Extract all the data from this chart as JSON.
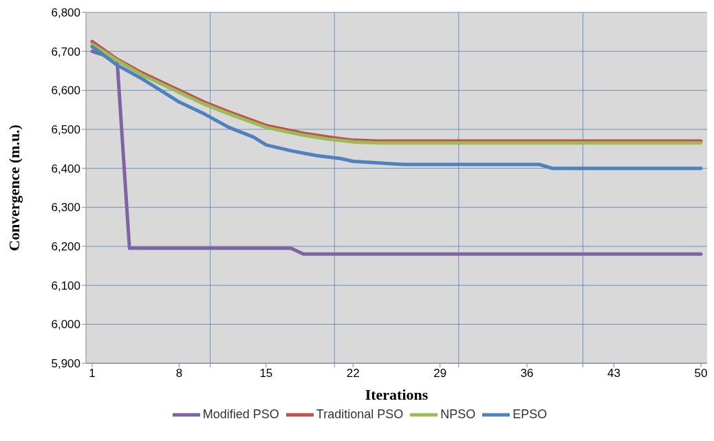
{
  "chart_data": {
    "type": "line",
    "xlabel": "Iterations",
    "ylabel": "Convergence (m.u.)",
    "xlim": [
      0.5,
      50.5
    ],
    "xticks": [
      1,
      8,
      {
        "value": 10.5,
        "label": null
      },
      15,
      {
        "value": 20.5,
        "label": null
      },
      22,
      29,
      {
        "value": 30.5,
        "label": null
      },
      36,
      {
        "value": 40.5,
        "label": null
      },
      43,
      50
    ],
    "ylim": [
      5900,
      6800
    ],
    "yticks": [
      {
        "value": 5900,
        "label": "5,900"
      },
      {
        "value": 6000,
        "label": "6,000"
      },
      {
        "value": 6100,
        "label": "6,100"
      },
      {
        "value": 6200,
        "label": "6,200"
      },
      {
        "value": 6300,
        "label": "6,300"
      },
      {
        "value": 6400,
        "label": "6,400"
      },
      {
        "value": 6500,
        "label": "6,500"
      },
      {
        "value": 6600,
        "label": "6,600"
      },
      {
        "value": 6700,
        "label": "6,700"
      },
      {
        "value": 6800,
        "label": "6,800"
      }
    ],
    "grid": true,
    "legend": "bottom",
    "marker": "none",
    "line_style": "solid",
    "series": [
      {
        "name": "Modified PSO",
        "color": "#8064a2",
        "x": [
          1,
          2,
          3,
          4,
          17,
          18,
          50
        ],
        "values": [
          6700,
          6690,
          6680,
          6195,
          6195,
          6180,
          6180
        ]
      },
      {
        "name": "Traditional PSO",
        "color": "#c0504d",
        "x": [
          1,
          3,
          5,
          8,
          10,
          12,
          15,
          18,
          20,
          22,
          24,
          50
        ],
        "values": [
          6725,
          6680,
          6645,
          6600,
          6570,
          6545,
          6510,
          6490,
          6480,
          6472,
          6470,
          6470
        ]
      },
      {
        "name": "NPSO",
        "color": "#9bbb59",
        "x": [
          1,
          3,
          5,
          8,
          10,
          12,
          15,
          18,
          20,
          22,
          24,
          50
        ],
        "values": [
          6718,
          6677,
          6640,
          6595,
          6565,
          6540,
          6505,
          6485,
          6475,
          6468,
          6465,
          6465
        ]
      },
      {
        "name": "EPSO",
        "color": "#4f81bd",
        "x": [
          1,
          3,
          5,
          6,
          8,
          10,
          12,
          14,
          15,
          17,
          19,
          21,
          22,
          26,
          37,
          38,
          50
        ],
        "values": [
          6712,
          6665,
          6630,
          6610,
          6570,
          6540,
          6505,
          6480,
          6460,
          6445,
          6433,
          6425,
          6418,
          6410,
          6410,
          6400,
          6400
        ]
      }
    ]
  }
}
